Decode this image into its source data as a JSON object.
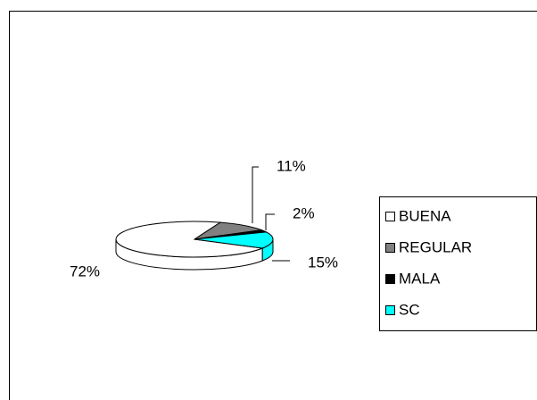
{
  "chart_data": {
    "type": "pie3d",
    "categories": [
      "BUENA",
      "REGULAR",
      "MALA",
      "SC"
    ],
    "values": [
      72,
      11,
      2,
      15
    ],
    "value_labels": [
      "72%",
      "11%",
      "2%",
      "15%"
    ],
    "colors": [
      "#ffffff",
      "#808080",
      "#000000",
      "#00ffff"
    ],
    "legend": "right"
  }
}
